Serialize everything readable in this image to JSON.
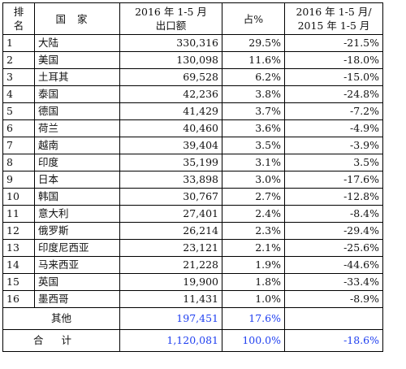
{
  "header": {
    "rank_line1": "排",
    "rank_line2": "名",
    "country": "国家",
    "value_line1": "2016 年 1-5 月",
    "value_line2": "出口额",
    "share": "占%",
    "yoy_line1": "2016 年 1-5 月/",
    "yoy_line2": "2015 年 1-5 月"
  },
  "rows": [
    {
      "rank": "1",
      "country": "大陆",
      "value": "330,316",
      "share": "29.5%",
      "yoy": "-21.5%"
    },
    {
      "rank": "2",
      "country": "美国",
      "value": "130,098",
      "share": "11.6%",
      "yoy": "-18.0%"
    },
    {
      "rank": "3",
      "country": "土耳其",
      "value": "69,528",
      "share": "6.2%",
      "yoy": "-15.0%"
    },
    {
      "rank": "4",
      "country": "泰国",
      "value": "42,236",
      "share": "3.8%",
      "yoy": "-24.8%"
    },
    {
      "rank": "5",
      "country": "德国",
      "value": "41,429",
      "share": "3.7%",
      "yoy": "-7.2%"
    },
    {
      "rank": "6",
      "country": "荷兰",
      "value": "40,460",
      "share": "3.6%",
      "yoy": "-4.9%"
    },
    {
      "rank": "7",
      "country": "越南",
      "value": "39,404",
      "share": "3.5%",
      "yoy": "-3.9%"
    },
    {
      "rank": "8",
      "country": "印度",
      "value": "35,199",
      "share": "3.1%",
      "yoy": "3.5%"
    },
    {
      "rank": "9",
      "country": "日本",
      "value": "33,898",
      "share": "3.0%",
      "yoy": "-17.6%"
    },
    {
      "rank": "10",
      "country": "韩国",
      "value": "30,767",
      "share": "2.7%",
      "yoy": "-12.8%"
    },
    {
      "rank": "11",
      "country": "意大利",
      "value": "27,401",
      "share": "2.4%",
      "yoy": "-8.4%"
    },
    {
      "rank": "12",
      "country": "俄罗斯",
      "value": "26,214",
      "share": "2.3%",
      "yoy": "-29.4%"
    },
    {
      "rank": "13",
      "country": "印度尼西亚",
      "value": "23,121",
      "share": "2.1%",
      "yoy": "-25.6%"
    },
    {
      "rank": "14",
      "country": "马来西亚",
      "value": "21,228",
      "share": "1.9%",
      "yoy": "-44.6%"
    },
    {
      "rank": "15",
      "country": "英国",
      "value": "19,900",
      "share": "1.8%",
      "yoy": "-33.4%"
    },
    {
      "rank": "16",
      "country": "墨西哥",
      "value": "11,431",
      "share": "1.0%",
      "yoy": "-8.9%"
    }
  ],
  "other": {
    "label": "其他",
    "value": "197,451",
    "share": "17.6%",
    "yoy": ""
  },
  "total": {
    "label": "合计",
    "value": "1,120,081",
    "share": "100.0%",
    "yoy": "-18.6%"
  }
}
